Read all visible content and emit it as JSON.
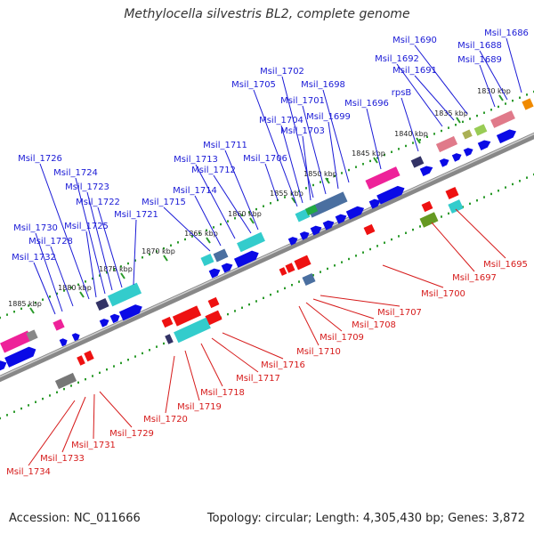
{
  "title": "Methylocella silvestris BL2, complete genome",
  "accession": "Accession: NC_011666",
  "summary": "Topology: circular; Length: 4,305,430 bp; Genes: 3,872",
  "colors": {
    "forward_label": "#1a1ad6",
    "reverse_label": "#d61a1a",
    "backbone": "#888888",
    "tick": "#2a9a2a"
  },
  "kbp_labels": [
    "1830 kbp",
    "1835 kbp",
    "1840 kbp",
    "1845 kbp",
    "1850 kbp",
    "1855 kbp",
    "1860 kbp",
    "1865 kbp",
    "1870 kbp",
    "1875 kbp",
    "1880 kbp",
    "1885 kbp"
  ],
  "forward_genes": [
    "Msil_1686",
    "Msil_1688",
    "Msil_1689",
    "Msil_1690",
    "Msil_1691",
    "Msil_1692",
    "rpsB",
    "Msil_1696",
    "Msil_1698",
    "Msil_1699",
    "Msil_1701",
    "Msil_1702",
    "Msil_1703",
    "Msil_1704",
    "Msil_1705",
    "Msil_1706",
    "Msil_1711",
    "Msil_1712",
    "Msil_1713",
    "Msil_1714",
    "Msil_1715",
    "Msil_1721",
    "Msil_1722",
    "Msil_1723",
    "Msil_1724",
    "Msil_1725",
    "Msil_1726",
    "Msil_1728",
    "Msil_1730",
    "Msil_1732"
  ],
  "reverse_genes": [
    "Msil_1695",
    "Msil_1697",
    "Msil_1700",
    "Msil_1707",
    "Msil_1708",
    "Msil_1709",
    "Msil_1710",
    "Msil_1716",
    "Msil_1717",
    "Msil_1718",
    "Msil_1719",
    "Msil_1720",
    "Msil_1729",
    "Msil_1731",
    "Msil_1733",
    "Msil_1734"
  ]
}
